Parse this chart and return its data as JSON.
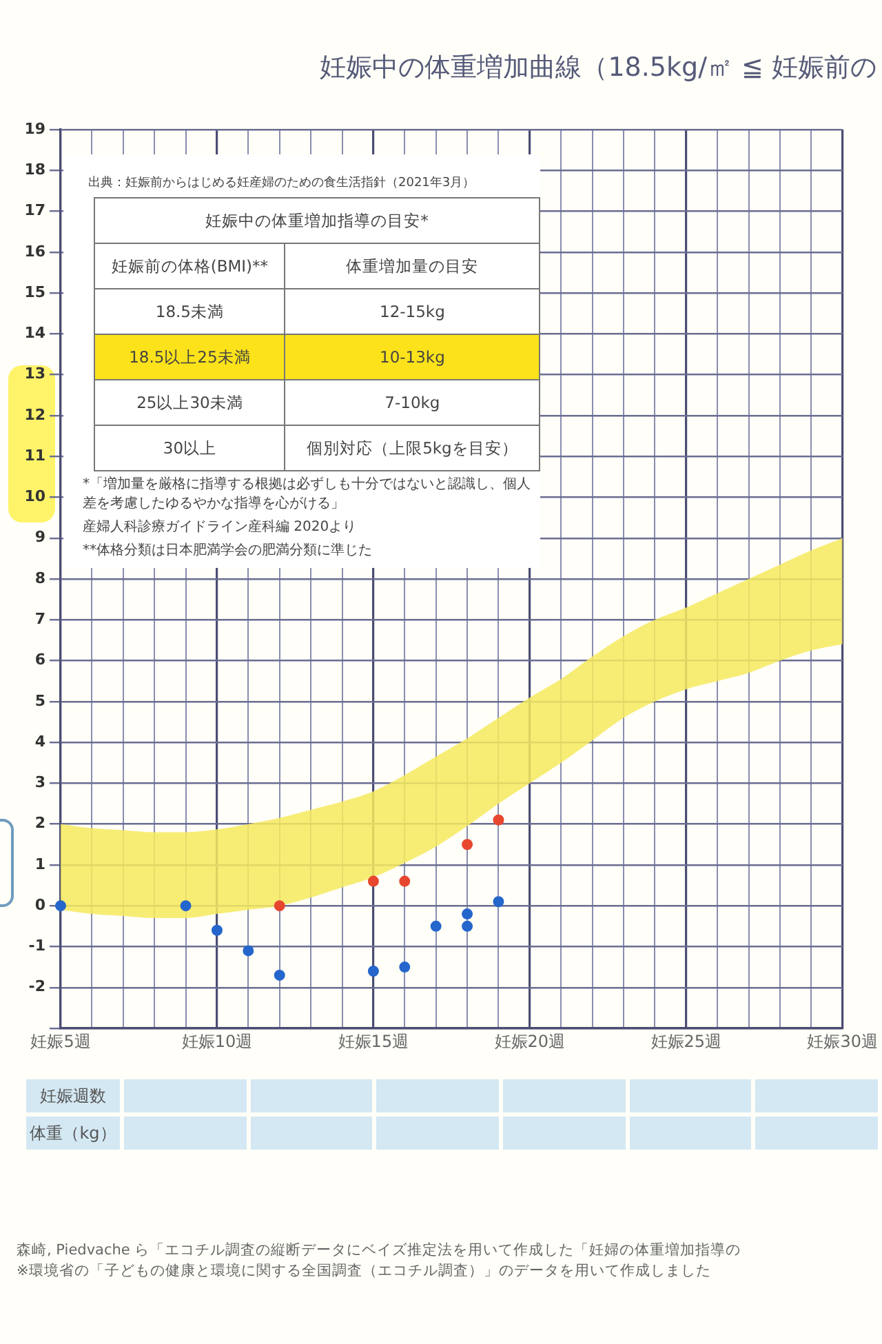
{
  "chart_data": {
    "type": "scatter",
    "title": "妊娠中の体重増加曲線（18.5kg/㎡ ≦ 妊娠前の",
    "categories": [
      "妊娠5週",
      null,
      null,
      null,
      null,
      "妊娠10週",
      null,
      null,
      null,
      null,
      "妊娠15週",
      null,
      null,
      null,
      null,
      "妊娠20週",
      null,
      null,
      null,
      null,
      "妊娠25週",
      null,
      null,
      null,
      null,
      "妊娠30週"
    ],
    "ylim": [
      -3,
      19
    ],
    "yticks": [
      {
        "value": -3,
        "label": null
      },
      -2,
      -1,
      0,
      1,
      2,
      3,
      4,
      5,
      6,
      7,
      8,
      9,
      10,
      11,
      12,
      13,
      14,
      15,
      16,
      17,
      18,
      19
    ],
    "grid": true,
    "marker": "circle",
    "series": [
      {
        "type": "area",
        "color": "#f6ea5e",
        "values": [
          null,
          null,
          null,
          null,
          null,
          null,
          null,
          null,
          null,
          null,
          null,
          null,
          null,
          null,
          null,
          null,
          null,
          null,
          null,
          null,
          null,
          null,
          null,
          null,
          null,
          null
        ],
        "lower": [
          -0.1,
          -0.2,
          -0.25,
          -0.3,
          -0.3,
          -0.2,
          -0.1,
          0,
          0.2,
          0.45,
          0.7,
          1.05,
          1.45,
          1.95,
          2.5,
          3,
          3.5,
          4.05,
          4.6,
          5,
          5.3,
          5.5,
          5.7,
          6,
          6.25,
          6.4
        ],
        "upper": [
          2,
          1.9,
          1.85,
          1.8,
          1.8,
          1.87,
          2,
          2.15,
          2.35,
          2.55,
          2.8,
          3.2,
          3.65,
          4.1,
          4.6,
          5.1,
          5.55,
          6.1,
          6.6,
          7,
          7.3,
          7.65,
          8,
          8.35,
          8.7,
          9
        ]
      },
      {
        "color": "#e8472f",
        "values": [
          null,
          null,
          null,
          null,
          null,
          null,
          null,
          0,
          null,
          null,
          0.6,
          0.6,
          null,
          1.5,
          2.1,
          null,
          null,
          null,
          null,
          null,
          null,
          null,
          null,
          null,
          null,
          null
        ]
      },
      {
        "color": "#2566cc",
        "values": [
          0,
          null,
          null,
          null,
          0,
          -0.6,
          -1.1,
          -1.7,
          null,
          null,
          -1.6,
          -1.5,
          -0.5,
          -0.5,
          0.1,
          null,
          null,
          null,
          null,
          null,
          null,
          null,
          null,
          null,
          null,
          null
        ]
      },
      {
        "color": "#2566cc",
        "values": [
          null,
          null,
          null,
          null,
          null,
          null,
          null,
          null,
          null,
          null,
          null,
          null,
          null,
          -0.2,
          null,
          null,
          null,
          null,
          null,
          null,
          null,
          null,
          null,
          null,
          null,
          null
        ]
      }
    ],
    "annotations": [
      "出典：妊娠前からはじめる妊産婦のための食生活指針（2021年3月）",
      "妊娠中の体重増加指導の目安*",
      "妊娠前の体格(BMI)**",
      "体重増加量の目安",
      "18.5未満",
      "12-15kg",
      "18.5以上25未満",
      "10-13kg",
      "25以上30未満",
      "7-10kg",
      "30以上",
      "個別対応（上限5kgを目安）",
      "*「増加量を厳格に指導する根拠は必ずしも十分ではないと認識し、個人差を考慮したゆるやかな指導を心がける」",
      "産婦人科診療ガイドライン産科編 2020より",
      "**体格分類は日本肥満学会の肥満分類に準じた",
      "妊娠週数",
      "体重（kg）",
      "森崎, Piedvache ら「エコチル調査の縦断データにベイズ推定法を用いて作成した「妊婦の体重増加指導の",
      "※環境省の「子どもの健康と環境に関する全国調査（エコチル調査）」のデータを用いて作成しました"
    ]
  }
}
